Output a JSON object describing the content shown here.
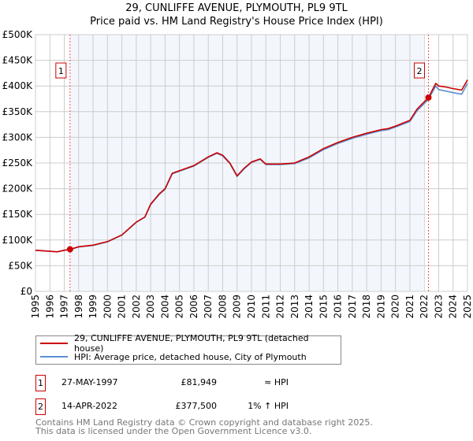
{
  "title": "29, CUNLIFFE AVENUE, PLYMOUTH, PL9 9TL",
  "subtitle": "Price paid vs. HM Land Registry's House Price Index (HPI)",
  "chart_data": {
    "type": "line",
    "xlim": [
      1995,
      2025
    ],
    "ylim": [
      0,
      500000
    ],
    "x_ticks": [
      "1995",
      "1996",
      "1997",
      "1998",
      "1999",
      "2000",
      "2001",
      "2002",
      "2003",
      "2004",
      "2005",
      "2006",
      "2007",
      "2008",
      "2009",
      "2010",
      "2011",
      "2012",
      "2013",
      "2014",
      "2015",
      "2016",
      "2017",
      "2018",
      "2019",
      "2020",
      "2021",
      "2022",
      "2023",
      "2024",
      "2025"
    ],
    "y_ticks": [
      {
        "v": 0,
        "label": "£0"
      },
      {
        "v": 50000,
        "label": "£50K"
      },
      {
        "v": 100000,
        "label": "£100K"
      },
      {
        "v": 150000,
        "label": "£150K"
      },
      {
        "v": 200000,
        "label": "£200K"
      },
      {
        "v": 250000,
        "label": "£250K"
      },
      {
        "v": 300000,
        "label": "£300K"
      },
      {
        "v": 350000,
        "label": "£350K"
      },
      {
        "v": 400000,
        "label": "£400K"
      },
      {
        "v": 450000,
        "label": "£450K"
      },
      {
        "v": 500000,
        "label": "£500K"
      }
    ],
    "grid": true,
    "shaded_range": [
      1997.4,
      2021.9
    ],
    "series": [
      {
        "name": "29, CUNLIFFE AVENUE, PLYMOUTH, PL9 9TL (detached house)",
        "color": "#cc0000",
        "x": [
          1995,
          1996,
          1996.5,
          1997,
          1997.4,
          1998,
          1999,
          2000,
          2001,
          2002,
          2002.6,
          2003,
          2003.6,
          2004,
          2004.5,
          2005,
          2006,
          2007,
          2007.6,
          2008,
          2008.5,
          2009,
          2009.5,
          2010,
          2010.6,
          2011,
          2012,
          2013,
          2014,
          2015,
          2016,
          2017,
          2018,
          2019,
          2019.5,
          2020,
          2021,
          2021.5,
          2022.29,
          2022.8,
          2023,
          2023.5,
          2024,
          2024.6,
          2025
        ],
        "y": [
          80000,
          78000,
          77000,
          80000,
          81949,
          87000,
          90000,
          97000,
          110000,
          135000,
          145000,
          170000,
          190000,
          200000,
          230000,
          235000,
          245000,
          262000,
          270000,
          265000,
          250000,
          225000,
          240000,
          252000,
          258000,
          248000,
          248000,
          250000,
          262000,
          278000,
          290000,
          300000,
          308000,
          315000,
          317000,
          322000,
          333000,
          355000,
          377500,
          405000,
          400000,
          398000,
          395000,
          392000,
          412000
        ]
      },
      {
        "name": "HPI: Average price, detached house, City of Plymouth",
        "color": "#5b8fd0",
        "x": [
          1995,
          1996,
          1996.5,
          1997,
          1997.4,
          1998,
          1999,
          2000,
          2001,
          2002,
          2002.6,
          2003,
          2003.6,
          2004,
          2004.5,
          2005,
          2006,
          2007,
          2007.6,
          2008,
          2008.5,
          2009,
          2009.5,
          2010,
          2010.6,
          2011,
          2012,
          2013,
          2014,
          2015,
          2016,
          2017,
          2018,
          2019,
          2019.5,
          2020,
          2021,
          2021.5,
          2022.29,
          2022.8,
          2023,
          2023.5,
          2024,
          2024.6,
          2025
        ],
        "y": [
          80000,
          78000,
          77000,
          80000,
          81500,
          86500,
          89500,
          96500,
          109500,
          134500,
          144500,
          169000,
          189000,
          199000,
          229000,
          234000,
          244000,
          261000,
          269000,
          264000,
          249000,
          224000,
          239000,
          251000,
          257000,
          247000,
          247000,
          249000,
          260000,
          276000,
          288000,
          298000,
          306000,
          313000,
          315000,
          320000,
          331000,
          352000,
          374000,
          400000,
          393000,
          390000,
          387000,
          384000,
          405000
        ]
      }
    ],
    "sales": [
      {
        "id": "1",
        "x": 1997.4,
        "y": 81949,
        "date": "27-MAY-1997",
        "price": "£81,949",
        "hpi": "≈ HPI"
      },
      {
        "id": "2",
        "x": 2022.29,
        "y": 377500,
        "date": "14-APR-2022",
        "price": "£377,500",
        "hpi": "1% ↑ HPI"
      }
    ]
  },
  "legend": {
    "property": "29, CUNLIFFE AVENUE, PLYMOUTH, PL9 9TL (detached house)",
    "hpi": "HPI: Average price, detached house, City of Plymouth"
  },
  "footer": {
    "line1": "Contains HM Land Registry data © Crown copyright and database right 2025.",
    "line2": "This data is licensed under the Open Government Licence v3.0."
  }
}
